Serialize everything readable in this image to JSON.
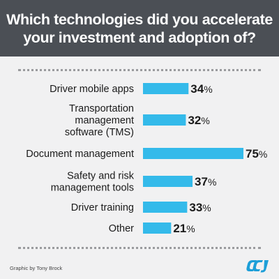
{
  "title": "Which technologies did you accelerate\nyour investment and adoption of?",
  "credit": "Graphic by Tony Brock",
  "colors": {
    "bar": "#34baea",
    "header": "#4b4f55",
    "logo": "#1d9fd8"
  },
  "chart_data": {
    "type": "bar",
    "orientation": "horizontal",
    "value_suffix": "%",
    "categories": [
      [
        "Driver mobile apps"
      ],
      [
        "Transportation",
        "management",
        "software (TMS)"
      ],
      [
        "Document management"
      ],
      [
        "Safety and risk",
        "management tools"
      ],
      [
        "Driver training"
      ],
      [
        "Other"
      ]
    ],
    "values": [
      34,
      32,
      75,
      37,
      33,
      21
    ],
    "xlim": [
      0,
      100
    ]
  }
}
